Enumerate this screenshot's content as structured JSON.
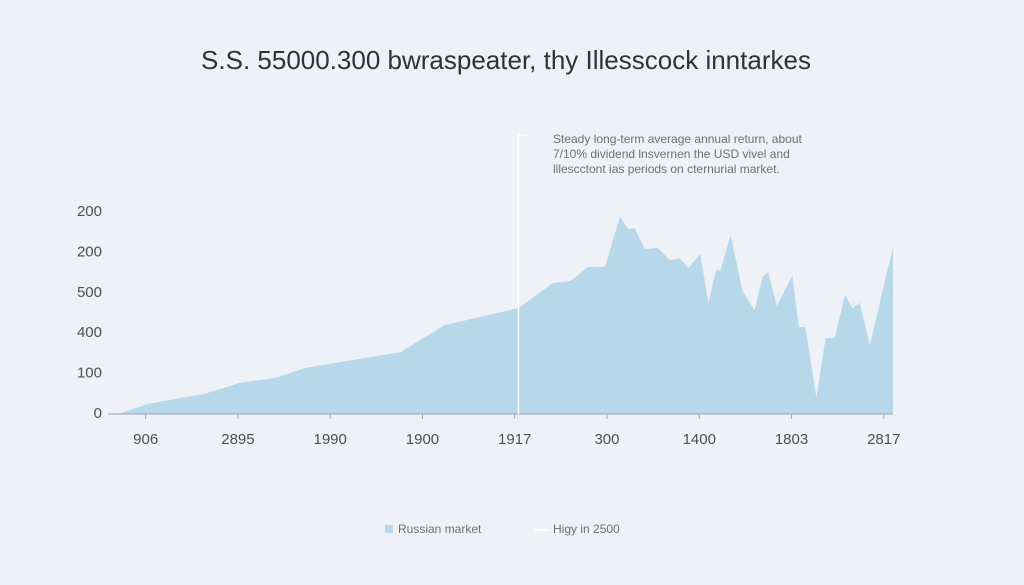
{
  "chart_data": {
    "type": "area",
    "title": "S.S. 55000.300 bwraspeater, thy Illesscock inntarkes",
    "categories": [
      "906",
      "2895",
      "1990",
      "1900",
      "1917",
      "300",
      "1400",
      "1803",
      "2817"
    ],
    "xlim": [
      -0.3,
      8.1
    ],
    "ylim": [
      0,
      5
    ],
    "y_axis_labels": [
      "0",
      "100",
      "400",
      "500",
      "200",
      "200"
    ],
    "series": [
      {
        "name": "Russian market",
        "color": "#b7d8ea",
        "x": [
          -0.3,
          0.03,
          0.64,
          1.02,
          1.4,
          1.73,
          2.76,
          3.24,
          4.04,
          4.41,
          4.6,
          4.8,
          4.98,
          5.14,
          5.23,
          5.3,
          5.41,
          5.55,
          5.68,
          5.79,
          5.88,
          6.01,
          6.1,
          6.18,
          6.23,
          6.34,
          6.47,
          6.6,
          6.69,
          6.75,
          6.84,
          7.01,
          7.08,
          7.15,
          7.27,
          7.37,
          7.47,
          7.58,
          7.66,
          7.74,
          7.85,
          8.1
        ],
        "values": [
          0,
          0.25,
          0.5,
          0.77,
          0.89,
          1.14,
          1.53,
          2.2,
          2.62,
          3.24,
          3.29,
          3.64,
          3.64,
          4.88,
          4.58,
          4.6,
          4.08,
          4.11,
          3.81,
          3.86,
          3.61,
          3.96,
          2.75,
          3.56,
          3.56,
          4.43,
          3.04,
          2.57,
          3.42,
          3.49,
          2.67,
          3.42,
          2.15,
          2.15,
          0.4,
          1.88,
          1.88,
          2.95,
          2.62,
          2.75,
          1.71,
          4.13
        ]
      }
    ],
    "annotation": {
      "x": 4.04,
      "lines": [
        "Steady long-term average annual return, about",
        "7/10% dividend lnsvernen the USD vivel and",
        "lllescctont ias periods on cternurial market."
      ],
      "legend": "Higy in 2500"
    }
  }
}
